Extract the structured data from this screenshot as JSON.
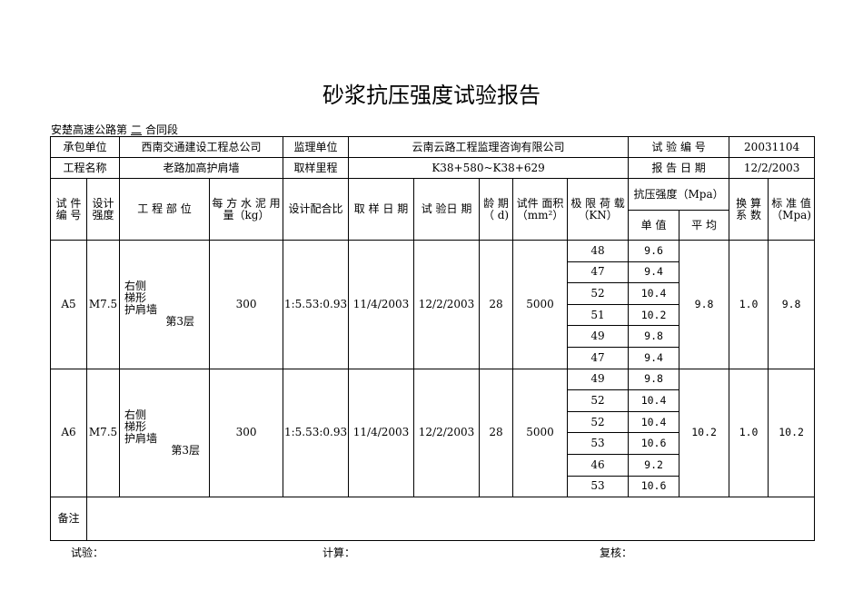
{
  "title": "砂浆抗压强度试验报告",
  "contract": {
    "prefix": "安楚高速公路第",
    "section": "二",
    "suffix": "合同段"
  },
  "info": {
    "contractor_label": "承包单位",
    "contractor": "西南交通建设工程总公司",
    "supervisor_label": "监理单位",
    "supervisor": "云南云路工程监理咨询有限公司",
    "test_no_label": "试 验 编 号",
    "test_no": "20031104",
    "project_label": "工程名称",
    "project": "老路加高护肩墙",
    "station_label": "取样里程",
    "station": "K38+580~K38+629",
    "report_date_label": "报 告 日 期",
    "report_date": "12/2/2003"
  },
  "headers": {
    "specimen_no": "试 件 编 号",
    "design_strength": "设计 强度",
    "location": "工 程 部 位",
    "cement": "每 方 水 泥 用 量（kg）",
    "mix": "设计配合比",
    "sample_date": "取 样 日 期",
    "test_date": "试 验日 期",
    "age": "龄 期（ d)",
    "area": "试件 面积（mm²）",
    "load": "极 限 荷 载（KN）",
    "strength": "抗压强度（Mpa）",
    "single": "单 值",
    "average": "平 均",
    "factor": "换 算 系 数",
    "standard": "标 准 值（Mpa)"
  },
  "specimens": [
    {
      "id": "A5",
      "grade": "M7.5",
      "location": "右侧\n梯形\n护肩墙",
      "floor": "第3层",
      "cement": "300",
      "mix": "1:5.53:0.93",
      "sample_date": "11/4/2003",
      "test_date": "12/2/2003",
      "age": "28",
      "area": "5000",
      "loads": [
        "48",
        "47",
        "52",
        "51",
        "49",
        "47"
      ],
      "singles": [
        "9.6",
        "9.4",
        "10.4",
        "10.2",
        "9.8",
        "9.4"
      ],
      "average": "9.8",
      "factor": "1.0",
      "standard": "9.8"
    },
    {
      "id": "A6",
      "grade": "M7.5",
      "location": "右侧\n梯形\n护肩墙",
      "floor": "第3层",
      "cement": "300",
      "mix": "1:5.53:0.93",
      "sample_date": "11/4/2003",
      "test_date": "12/2/2003",
      "age": "28",
      "area": "5000",
      "loads": [
        "49",
        "52",
        "52",
        "53",
        "46",
        "53"
      ],
      "singles": [
        "9.8",
        "10.4",
        "10.4",
        "10.6",
        "9.2",
        "10.6"
      ],
      "average": "10.2",
      "factor": "1.0",
      "standard": "10.2"
    }
  ],
  "remarks_label": "备注",
  "footer": {
    "test": "试验：",
    "calc": "计算：",
    "review": "复核："
  }
}
